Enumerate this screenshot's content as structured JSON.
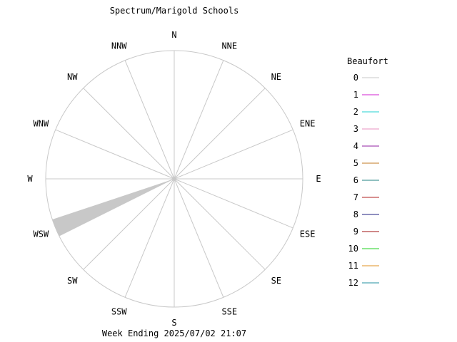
{
  "chart_data": {
    "type": "wind-rose",
    "title": "Spectrum/Marigold Schools",
    "footer": "Week Ending 2025/07/02 21:07",
    "directions": [
      "N",
      "NNE",
      "NE",
      "ENE",
      "E",
      "ESE",
      "SE",
      "SSE",
      "S",
      "SSW",
      "SW",
      "WSW",
      "W",
      "WNW",
      "NW",
      "NNW"
    ],
    "legend": {
      "title": "Beaufort",
      "entries": [
        {
          "label": "0",
          "color": "#c8c8c8"
        },
        {
          "label": "1",
          "color": "#d020d0"
        },
        {
          "label": "2",
          "color": "#20d0d0"
        },
        {
          "label": "3",
          "color": "#e890c0"
        },
        {
          "label": "4",
          "color": "#9020a0"
        },
        {
          "label": "5",
          "color": "#c07820"
        },
        {
          "label": "6",
          "color": "#208080"
        },
        {
          "label": "7",
          "color": "#b02020"
        },
        {
          "label": "8",
          "color": "#202080"
        },
        {
          "label": "9",
          "color": "#a01010"
        },
        {
          "label": "10",
          "color": "#20d020"
        },
        {
          "label": "11",
          "color": "#e09020"
        },
        {
          "label": "12",
          "color": "#2090a0"
        }
      ]
    },
    "series": [
      {
        "beaufort": "0",
        "direction": "WSW",
        "frequency": 1.0
      }
    ],
    "radial_max": 1.0,
    "grid": true
  }
}
